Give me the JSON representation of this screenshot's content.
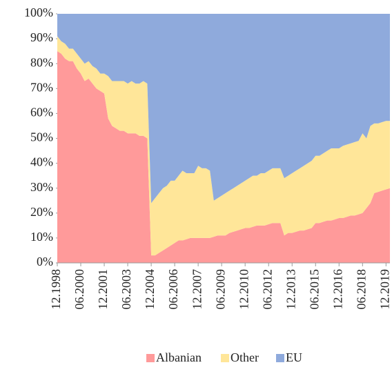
{
  "chart_data": {
    "type": "stacked_area",
    "categories": [
      "12.1998",
      null,
      null,
      null,
      null,
      null,
      "06.2000",
      null,
      null,
      null,
      null,
      null,
      "12.2001",
      null,
      null,
      null,
      null,
      null,
      "06.2003",
      null,
      null,
      null,
      null,
      null,
      "12.2004",
      null,
      null,
      null,
      null,
      null,
      "06.2006",
      null,
      null,
      null,
      null,
      null,
      "12.2007",
      null,
      null,
      null,
      null,
      null,
      "06.2009",
      null,
      null,
      null,
      null,
      null,
      "12.2010",
      null,
      null,
      null,
      null,
      null,
      "06.2012",
      null,
      null,
      null,
      null,
      null,
      "12.2013",
      null,
      null,
      null,
      null,
      null,
      "06.2015",
      null,
      null,
      null,
      null,
      null,
      "12.2016",
      null,
      null,
      null,
      null,
      null,
      "06.2018",
      null,
      null,
      null,
      null,
      null,
      "12.2019",
      null
    ],
    "series": [
      {
        "name": "Albanian",
        "color": "#ff9a9a",
        "values": [
          85,
          84,
          82,
          81,
          81,
          78,
          76,
          73,
          74,
          72,
          70,
          69,
          68,
          58,
          55,
          54,
          53,
          53,
          52,
          52,
          52,
          51,
          51,
          50,
          3,
          3,
          4,
          5,
          6,
          7,
          8,
          9,
          9,
          9.5,
          10,
          10,
          10,
          10,
          10,
          10,
          10.5,
          11,
          11,
          11,
          12,
          12.5,
          13,
          13.5,
          14,
          14,
          14.5,
          15,
          15,
          15,
          15.5,
          16,
          16,
          16,
          11,
          12,
          12,
          12.5,
          13,
          13,
          13.5,
          14,
          16,
          16,
          16.5,
          17,
          17,
          17.5,
          18,
          18,
          18.5,
          19,
          19,
          19.5,
          20,
          22,
          24,
          28,
          28.5,
          29,
          29.5,
          30
        ]
      },
      {
        "name": "Other",
        "color": "#ffe699",
        "values": [
          6,
          5,
          6,
          5,
          5,
          6,
          6,
          7,
          7,
          7,
          8,
          7,
          8,
          17,
          18,
          19,
          20,
          20,
          20,
          21,
          20,
          21,
          22,
          22,
          21,
          23,
          24,
          25,
          25,
          26,
          25,
          26,
          28,
          26.5,
          26,
          26,
          29,
          28,
          28,
          27,
          14.5,
          15,
          16,
          17,
          17,
          17.5,
          18,
          18.5,
          19,
          20,
          20.5,
          20,
          21,
          21,
          21.5,
          22,
          22,
          22,
          23,
          23,
          24,
          24.5,
          25,
          26,
          26.5,
          27,
          27,
          27,
          27.5,
          28,
          29,
          28.5,
          28,
          29,
          29,
          29,
          29.5,
          29.5,
          32,
          28,
          31,
          28,
          27.5,
          27.5,
          27.5,
          27
        ]
      },
      {
        "name": "EU",
        "color": "#8faadc",
        "values": [
          9,
          11,
          12,
          14,
          14,
          16,
          18,
          20,
          19,
          21,
          22,
          24,
          24,
          25,
          27,
          27,
          27,
          27,
          28,
          27,
          28,
          28,
          27,
          28,
          76,
          74,
          72,
          70,
          69,
          67,
          67,
          65,
          63,
          64,
          64,
          64,
          61,
          62,
          62,
          63,
          75,
          74,
          73,
          72,
          71,
          70,
          69,
          68,
          67,
          66,
          65,
          65,
          64,
          64,
          63,
          62,
          62,
          62,
          66,
          65,
          64,
          63,
          62,
          61,
          60,
          59,
          57,
          57,
          56,
          55,
          54,
          54,
          54,
          53,
          52.5,
          52,
          51.5,
          51,
          48,
          50,
          45,
          44,
          44,
          43.5,
          43,
          43
        ]
      }
    ],
    "ylim": [
      0,
      100
    ],
    "yticks": [
      {
        "value": 0,
        "label": "0%"
      },
      {
        "value": 10,
        "label": "10%"
      },
      {
        "value": 20,
        "label": "20%"
      },
      {
        "value": 30,
        "label": "30%"
      },
      {
        "value": 40,
        "label": "40%"
      },
      {
        "value": 50,
        "label": "50%"
      },
      {
        "value": 60,
        "label": "60%"
      },
      {
        "value": 70,
        "label": "70%"
      },
      {
        "value": 80,
        "label": "80%"
      },
      {
        "value": 90,
        "label": "90%"
      },
      {
        "value": 100,
        "label": "100%"
      }
    ],
    "legend": "bottom"
  }
}
